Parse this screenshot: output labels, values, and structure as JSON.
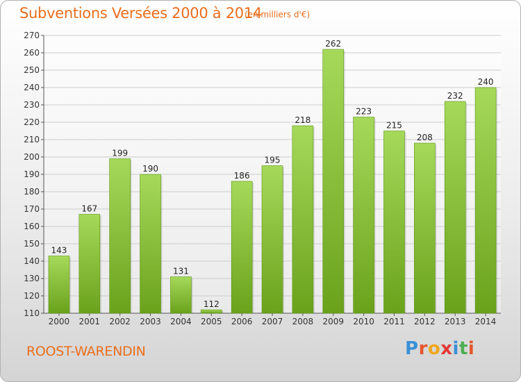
{
  "title": "Subventions Versées 2000 à 2014",
  "subtitle": "(en milliers d'€)",
  "commune": "ROOST-WARENDIN",
  "logo": {
    "letters": [
      "P",
      "r",
      "o",
      "x",
      "i",
      "t",
      "i"
    ],
    "colors": [
      "#3a8fd6",
      "#e4572e",
      "#f0a81c",
      "#e53935",
      "#3a8fd6",
      "#4caf50",
      "#e4572e"
    ]
  },
  "colors": {
    "bar_light": "#a6d95a",
    "bar_dark": "#6aa21c",
    "title": "#ea6e1c",
    "grid": "#cccccc"
  },
  "chart_data": {
    "type": "bar",
    "categories": [
      "2000",
      "2001",
      "2002",
      "2003",
      "2004",
      "2005",
      "2006",
      "2007",
      "2008",
      "2009",
      "2010",
      "2011",
      "2012",
      "2013",
      "2014"
    ],
    "values": [
      143,
      167,
      199,
      190,
      131,
      112,
      186,
      195,
      218,
      262,
      223,
      215,
      208,
      232,
      240
    ],
    "yticks": [
      110,
      120,
      130,
      140,
      150,
      160,
      170,
      180,
      190,
      200,
      210,
      220,
      230,
      240,
      250,
      260,
      270
    ],
    "ylim": [
      110,
      270
    ],
    "grid": true,
    "legend": "none"
  }
}
